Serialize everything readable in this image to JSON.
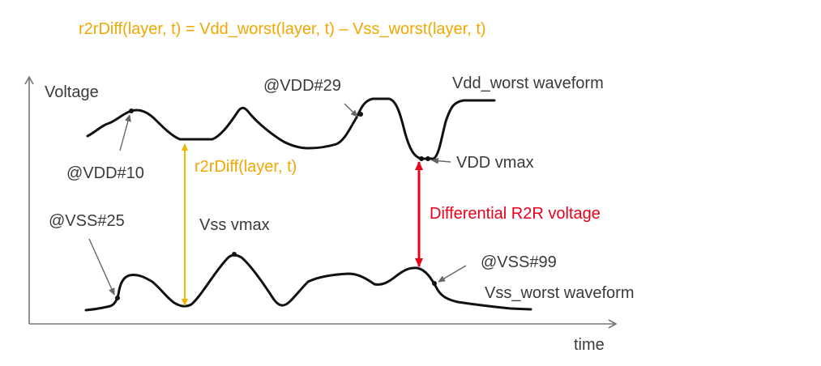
{
  "formula": "r2rDiff(layer, t) = Vdd_worst(layer, t) – Vss_worst(layer, t)",
  "axes": {
    "y_label": "Voltage",
    "x_label": "time"
  },
  "labels": {
    "vdd_waveform": "Vdd_worst waveform",
    "vss_waveform": "Vss_worst waveform",
    "vdd10": "@VDD#10",
    "vdd29": "@VDD#29",
    "vss25": "@VSS#25",
    "vss99": "@VSS#99",
    "vdd_vmax": "VDD vmax",
    "vss_vmax": "Vss vmax",
    "r2rdiff": "r2rDiff(layer, t)",
    "diff_r2r": "Differential R2R voltage"
  },
  "colors": {
    "formula": "#f0a800",
    "r2r_arrow": "#f5b400",
    "diff_arrow": "#e8001c",
    "diff_text": "#e8001c",
    "wave": "#111111",
    "label": "#3a3a3a"
  }
}
